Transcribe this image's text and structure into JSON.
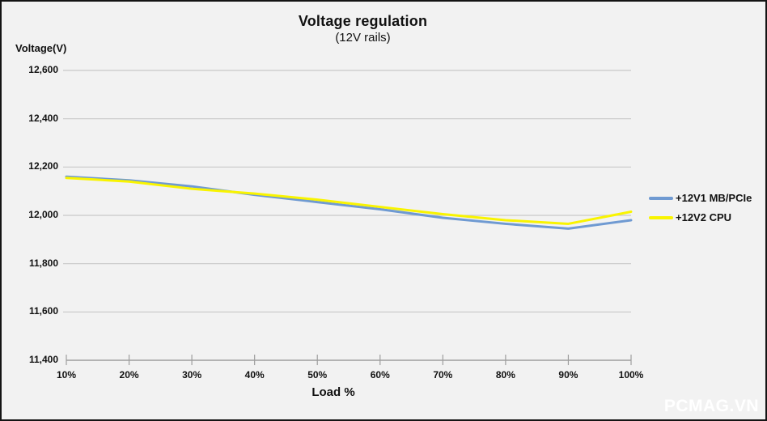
{
  "frame": {
    "background_color": "#f2f2f2",
    "border_color": "#141414",
    "gridline_color": "#c9c9c9",
    "axis_color": "#9e9e9e"
  },
  "chart_data": {
    "type": "line",
    "title": "Voltage regulation",
    "subtitle": "(12V rails)",
    "xlabel": "Load %",
    "ylabel": "Voltage(V)",
    "categories": [
      "10%",
      "20%",
      "30%",
      "40%",
      "50%",
      "60%",
      "70%",
      "80%",
      "90%",
      "100%"
    ],
    "series": [
      {
        "name": "+12V1 MB/PCIe",
        "color": "#6f9ad2",
        "values": [
          12160,
          12145,
          12120,
          12085,
          12055,
          12025,
          11990,
          11965,
          11945,
          11980
        ]
      },
      {
        "name": "+12V2 CPU",
        "color": "#f9f400",
        "values": [
          12155,
          12140,
          12110,
          12090,
          12065,
          12035,
          12005,
          11980,
          11965,
          12015
        ]
      }
    ],
    "ylim": [
      11400,
      12600
    ],
    "yticks": [
      {
        "label": "12,600",
        "value": 12600
      },
      {
        "label": "12,400",
        "value": 12400
      },
      {
        "label": "12,200",
        "value": 12200
      },
      {
        "label": "12,000",
        "value": 12000
      },
      {
        "label": "11,800",
        "value": 11800
      },
      {
        "label": "11,600",
        "value": 11600
      },
      {
        "label": "11,400",
        "value": 11400
      }
    ],
    "grid": true,
    "legend_position": "right"
  },
  "watermark": {
    "text": "PCMAG.VN",
    "color": "#ffffff"
  }
}
